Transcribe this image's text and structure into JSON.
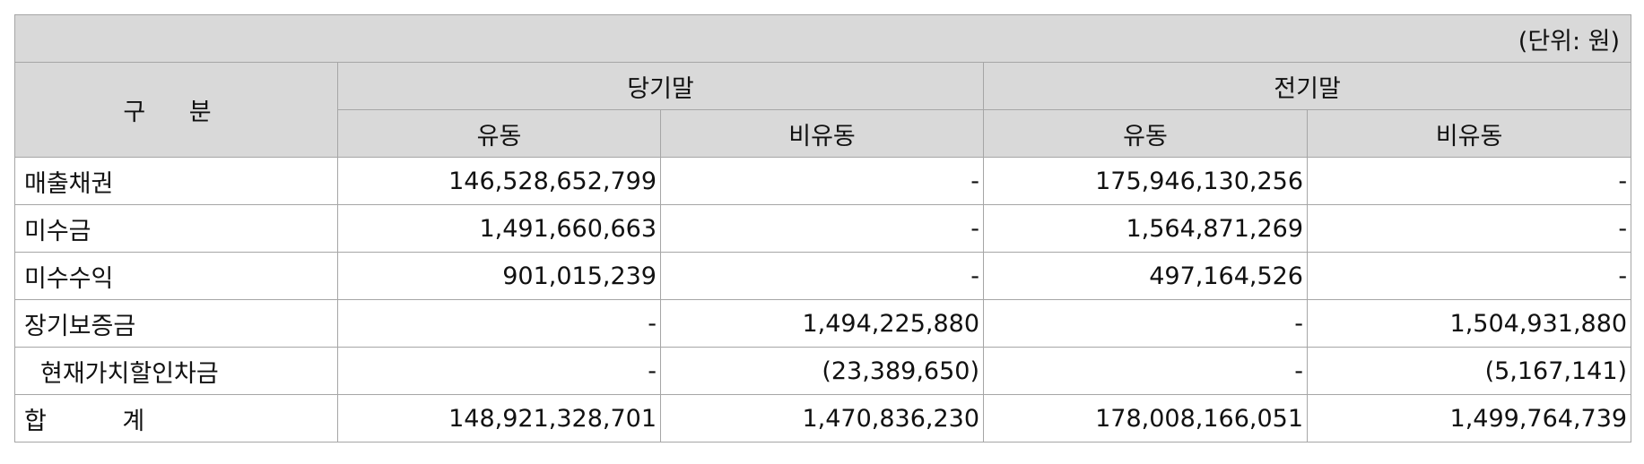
{
  "unit_note": "(단위: 원)",
  "headers": {
    "category": "구 분",
    "current_period": "당기말",
    "prior_period": "전기말",
    "current": "유동",
    "non_current": "비유동"
  },
  "rows": [
    {
      "label": "매출채권",
      "indent": false,
      "cur_current": "146,528,652,799",
      "cur_noncurrent": "-",
      "prev_current": "175,946,130,256",
      "prev_noncurrent": "-"
    },
    {
      "label": "미수금",
      "indent": false,
      "cur_current": "1,491,660,663",
      "cur_noncurrent": "-",
      "prev_current": "1,564,871,269",
      "prev_noncurrent": "-"
    },
    {
      "label": "미수수익",
      "indent": false,
      "cur_current": "901,015,239",
      "cur_noncurrent": "-",
      "prev_current": "497,164,526",
      "prev_noncurrent": "-"
    },
    {
      "label": "장기보증금",
      "indent": false,
      "cur_current": "-",
      "cur_noncurrent": "1,494,225,880",
      "prev_current": "-",
      "prev_noncurrent": "1,504,931,880"
    },
    {
      "label": "현재가치할인차금",
      "indent": true,
      "cur_current": "-",
      "cur_noncurrent": "(23,389,650)",
      "prev_current": "-",
      "prev_noncurrent": "(5,167,141)"
    },
    {
      "label": "합 계",
      "indent": false,
      "total": true,
      "cur_current": "148,921,328,701",
      "cur_noncurrent": "1,470,836,230",
      "prev_current": "178,008,166,051",
      "prev_noncurrent": "1,499,764,739"
    }
  ]
}
